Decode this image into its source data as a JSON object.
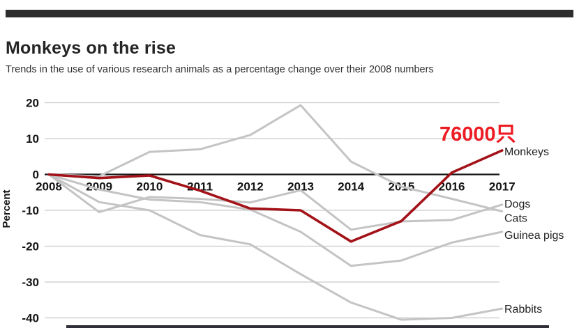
{
  "header": {
    "title": "Monkeys on the rise",
    "subtitle": "Trends in the use of various research animals as a percentage change over their 2008 numbers"
  },
  "decor": {
    "top_bar_color": "#2d2d2d",
    "bottom_bar_color": "#30303a"
  },
  "chart_data": {
    "type": "line",
    "title": "Monkeys on the rise",
    "xlabel": "",
    "ylabel": "Percent",
    "x": [
      "2008",
      "2009",
      "2010",
      "2011",
      "2012",
      "2013",
      "2014",
      "2015",
      "2016",
      "2017"
    ],
    "ylim": [
      -45,
      25
    ],
    "yticks": [
      20,
      10,
      0,
      -10,
      -20,
      -30,
      -40
    ],
    "grid": "horizontal",
    "legend_position": "right-edge-labels",
    "series": [
      {
        "name": "Dogs",
        "color": "#c4c4c4",
        "highlight": false,
        "values": [
          0,
          -10.5,
          -6.3,
          -6.8,
          -7.8,
          -4.4,
          -15.4,
          -13.1,
          -12.7,
          -8.4
        ]
      },
      {
        "name": "Cats",
        "color": "#c4c4c4",
        "highlight": false,
        "values": [
          0,
          -0.5,
          6.3,
          7,
          11,
          19.3,
          3.6,
          -3.4,
          -6.8,
          -10.3
        ]
      },
      {
        "name": "Guinea pigs",
        "color": "#c4c4c4",
        "highlight": false,
        "values": [
          0,
          -4.2,
          -7,
          -7.7,
          -9.8,
          -16,
          -25.5,
          -24,
          -19,
          -16
        ]
      },
      {
        "name": "Rabbits",
        "color": "#c4c4c4",
        "highlight": false,
        "values": [
          0,
          -7.7,
          -10,
          -16.9,
          -19.5,
          -27.8,
          -35.7,
          -40.5,
          -40,
          -37.4
        ]
      },
      {
        "name": "Monkeys",
        "color": "#a31218",
        "highlight": true,
        "values": [
          0,
          -1,
          -0.3,
          -4.5,
          -9.5,
          -10,
          -18.7,
          -13,
          0.5,
          6.7
        ]
      }
    ],
    "annotation": {
      "text": "76000只",
      "color": "#ed1c24",
      "target_series": "Monkeys"
    }
  }
}
